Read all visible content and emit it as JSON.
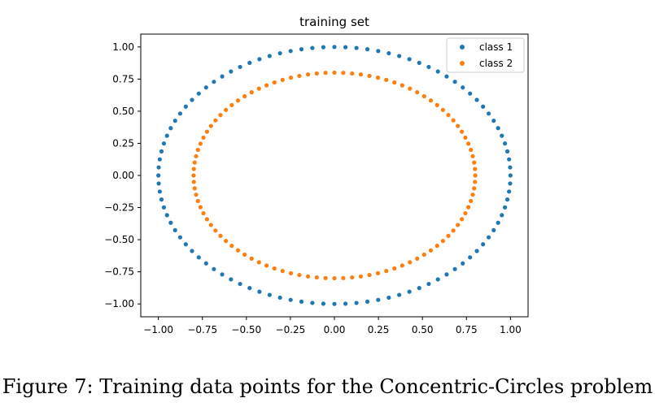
{
  "figure": {
    "caption": "Figure 7: Training data points for the Concentric-Circles problem"
  },
  "chart_data": {
    "type": "scatter",
    "title": "training set",
    "xlabel": "",
    "ylabel": "",
    "xlim": [
      -1.1,
      1.1
    ],
    "ylim": [
      -1.1,
      1.1
    ],
    "xticks": [
      -1.0,
      -0.75,
      -0.5,
      -0.25,
      0.0,
      0.25,
      0.5,
      0.75,
      1.0
    ],
    "xtick_labels": [
      "−1.00",
      "−0.75",
      "−0.50",
      "−0.25",
      "0.00",
      "0.25",
      "0.50",
      "0.75",
      "1.00"
    ],
    "yticks": [
      1.0,
      0.75,
      0.5,
      0.25,
      0.0,
      -0.25,
      -0.5,
      -0.75,
      -1.0
    ],
    "ytick_labels": [
      "1.00",
      "0.75",
      "0.50",
      "0.25",
      "0.00",
      "−0.25",
      "−0.50",
      "−0.75",
      "−1.00"
    ],
    "grid": false,
    "legend_position": "top-right",
    "series": [
      {
        "name": "class 1",
        "color": "#1f77b4",
        "shape": "circle",
        "radius": 1.0,
        "n_points": 100
      },
      {
        "name": "class 2",
        "color": "#ff7f0e",
        "shape": "circle",
        "radius": 0.8,
        "n_points": 100
      }
    ]
  }
}
